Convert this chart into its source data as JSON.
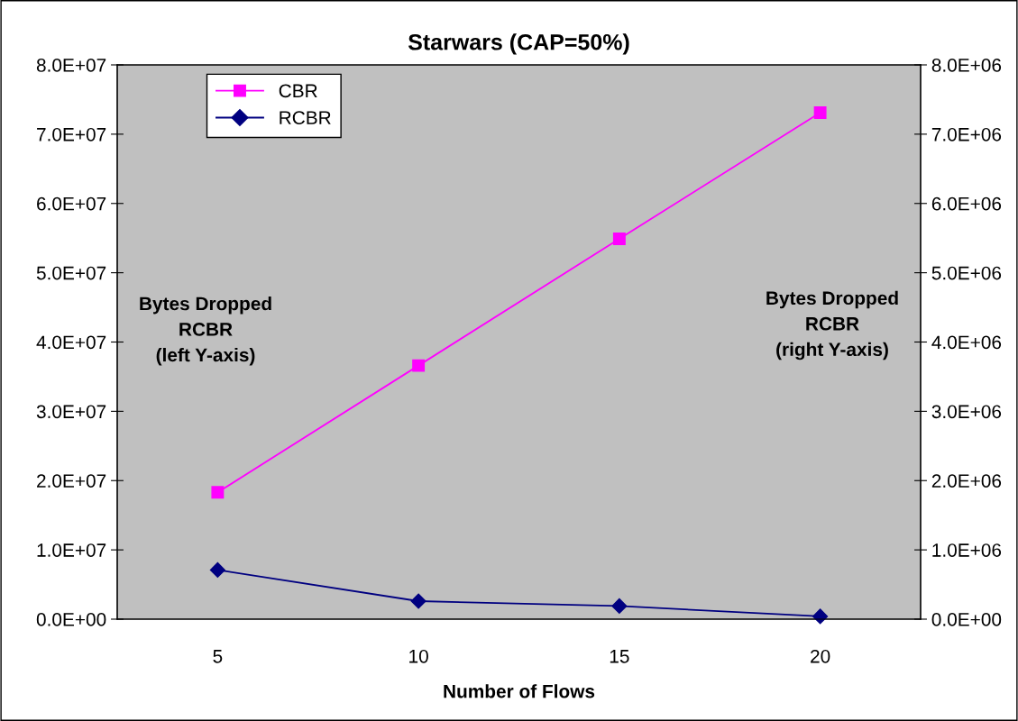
{
  "chart_data": {
    "type": "line",
    "title": "Starwars (CAP=50%)",
    "xlabel": "Number of Flows",
    "categories": [
      "5",
      "10",
      "15",
      "20"
    ],
    "series": [
      {
        "name": "CBR",
        "color": "#ff00ff",
        "marker": "square",
        "values": [
          18300000,
          36600000,
          54900000,
          73100000
        ]
      },
      {
        "name": "RCBR",
        "color": "#000080",
        "marker": "diamond",
        "axis": "y2",
        "values": [
          710000,
          260000,
          190000,
          40000
        ]
      }
    ],
    "ylim": [
      0,
      80000000
    ],
    "yticks": [
      {
        "value": 0,
        "label": "0.0E+00"
      },
      {
        "value": 10000000,
        "label": "1.0E+07"
      },
      {
        "value": 20000000,
        "label": "2.0E+07"
      },
      {
        "value": 30000000,
        "label": "3.0E+07"
      },
      {
        "value": 40000000,
        "label": "4.0E+07"
      },
      {
        "value": 50000000,
        "label": "5.0E+07"
      },
      {
        "value": 60000000,
        "label": "6.0E+07"
      },
      {
        "value": 70000000,
        "label": "7.0E+07"
      },
      {
        "value": 80000000,
        "label": "8.0E+07"
      }
    ],
    "y2lim": [
      0,
      8000000
    ],
    "y2ticks": [
      {
        "value": 0,
        "label": "0.0E+00"
      },
      {
        "value": 1000000,
        "label": "1.0E+06"
      },
      {
        "value": 2000000,
        "label": "2.0E+06"
      },
      {
        "value": 3000000,
        "label": "3.0E+06"
      },
      {
        "value": 4000000,
        "label": "4.0E+06"
      },
      {
        "value": 5000000,
        "label": "5.0E+06"
      },
      {
        "value": 6000000,
        "label": "6.0E+06"
      },
      {
        "value": 7000000,
        "label": "7.0E+06"
      },
      {
        "value": 8000000,
        "label": "8.0E+06"
      }
    ],
    "annotations": [
      "Bytes Dropped\nRCBR\n(left Y-axis)",
      "Bytes Dropped\nRCBR\n(right Y-axis)"
    ],
    "legend": "top left",
    "grid": false
  }
}
